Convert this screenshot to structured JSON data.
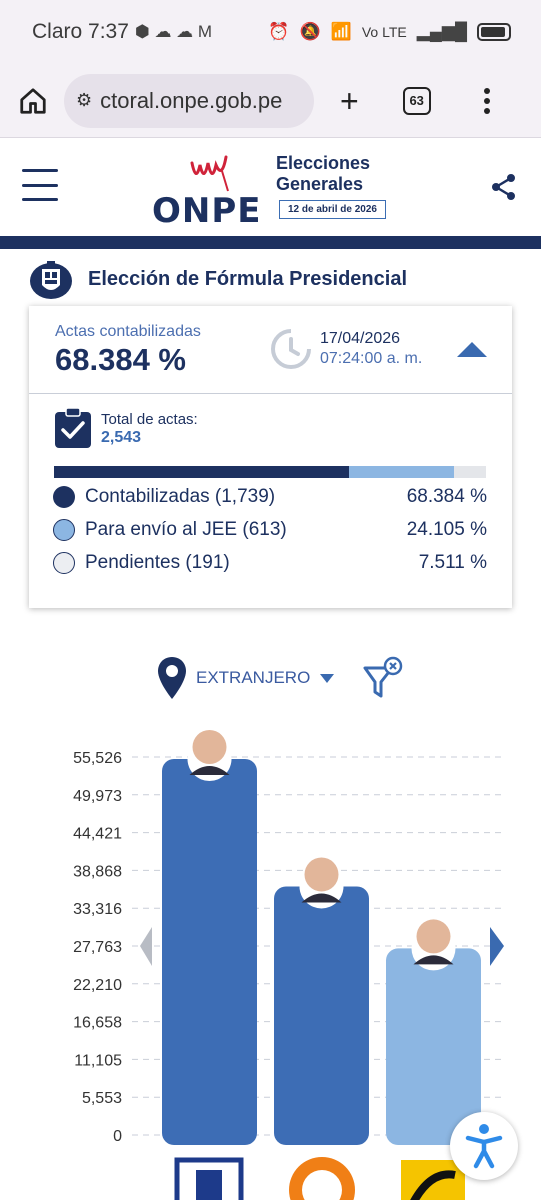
{
  "status_bar": {
    "carrier_time": "Claro 7:37",
    "network": "Vo LTE",
    "signal": "6"
  },
  "browser": {
    "url": "ctoral.onpe.gob.pe",
    "tab_count": "63"
  },
  "header": {
    "logo": "ONPE",
    "title_line1": "Elecciones",
    "title_line2": "Generales",
    "date": "12 de abril de 2026"
  },
  "section": {
    "title": "Elección de Fórmula Presidencial"
  },
  "summary": {
    "actas_label": "Actas contabilizadas",
    "actas_pct": "68.384 %",
    "date": "17/04/2026",
    "time": "07:24:00 a. m.",
    "total_label": "Total de actas:",
    "total_value": "2,543",
    "progress": {
      "contabilizadas": 68.384,
      "jee": 24.105,
      "pendientes": 7.511
    },
    "legend": [
      {
        "label": "Contabilizadas (1,739)",
        "pct": "68.384 %",
        "color": "#1d3160"
      },
      {
        "label": "Para envío al JEE (613)",
        "pct": "24.105 %",
        "color": "#8cb6e2"
      },
      {
        "label": "Pendientes (191)",
        "pct": "7.511 %",
        "color": "#e4e6ea"
      }
    ]
  },
  "filter": {
    "region": "EXTRANJERO"
  },
  "chart_data": {
    "type": "bar",
    "y_ticks": [
      "55,526",
      "49,973",
      "44,421",
      "38,868",
      "33,316",
      "27,763",
      "22,210",
      "16,658",
      "11,105",
      "5,553",
      "0"
    ],
    "ylim": [
      0,
      55526
    ],
    "values": [
      55526,
      36800,
      27700
    ],
    "colors": [
      "#3d6db5",
      "#3d6db5",
      "#8cb6e2"
    ]
  }
}
